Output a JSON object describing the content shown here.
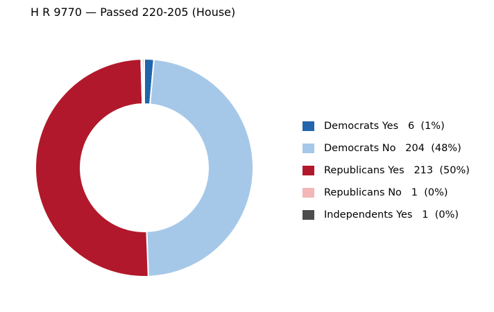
{
  "chart_data": {
    "type": "pie",
    "donut": true,
    "title": "H R 9770 — Passed 220-205 (House)",
    "legend_position": "right",
    "slices": [
      {
        "label": "Democrats Yes",
        "value": 6,
        "percent_label": "(1%)",
        "color": "#2166ac"
      },
      {
        "label": "Democrats No",
        "value": 204,
        "percent_label": "(48%)",
        "color": "#a6c8e8"
      },
      {
        "label": "Republicans Yes",
        "value": 213,
        "percent_label": "(50%)",
        "color": "#b2182b"
      },
      {
        "label": "Republicans No",
        "value": 1,
        "percent_label": "(0%)",
        "color": "#f4b6b6"
      },
      {
        "label": "Independents Yes",
        "value": 1,
        "percent_label": "(0%)",
        "color": "#4d4d4d"
      }
    ]
  }
}
